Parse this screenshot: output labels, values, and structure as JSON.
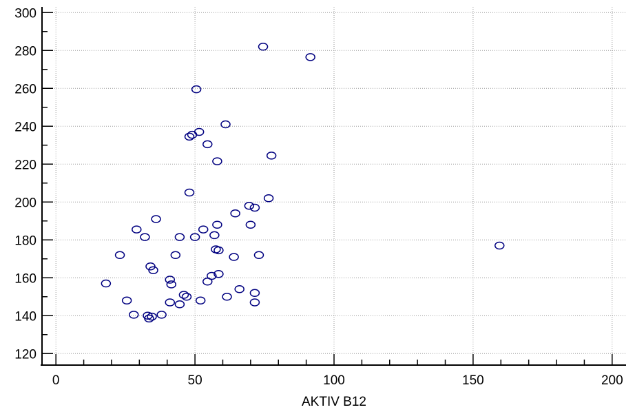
{
  "chart_data": {
    "type": "scatter",
    "title": "",
    "xlabel": "AKTIV B12",
    "ylabel": "",
    "xlim": [
      -5,
      205
    ],
    "ylim": [
      115,
      303
    ],
    "x_ticks": [
      0,
      50,
      100,
      150,
      200
    ],
    "y_ticks": [
      120,
      140,
      160,
      180,
      200,
      220,
      240,
      260,
      280,
      300
    ],
    "x_tick_labels": [
      "0",
      "50",
      "100",
      "150",
      "200"
    ],
    "y_tick_labels": [
      "120",
      "140",
      "160",
      "180",
      "200",
      "220",
      "240",
      "260",
      "280",
      "300"
    ],
    "grid": true,
    "marker_color": "#000080",
    "series": [
      {
        "points": [
          [
            74.5,
            282
          ],
          [
            91.5,
            276.5
          ],
          [
            50.5,
            259.5
          ],
          [
            61,
            241
          ],
          [
            51.5,
            237
          ],
          [
            49,
            235.5
          ],
          [
            48,
            234.5
          ],
          [
            54.5,
            230.5
          ],
          [
            77.5,
            224.5
          ],
          [
            58,
            221.5
          ],
          [
            48,
            205
          ],
          [
            76.5,
            202
          ],
          [
            69.5,
            198
          ],
          [
            71.5,
            197
          ],
          [
            64.5,
            194
          ],
          [
            36,
            191
          ],
          [
            58,
            188
          ],
          [
            70,
            188
          ],
          [
            29,
            185.5
          ],
          [
            53,
            185.5
          ],
          [
            32,
            181.5
          ],
          [
            44.5,
            181.5
          ],
          [
            50,
            181.5
          ],
          [
            57,
            182.5
          ],
          [
            57.5,
            175
          ],
          [
            58.5,
            174.5
          ],
          [
            159.5,
            177
          ],
          [
            23,
            172
          ],
          [
            43,
            172
          ],
          [
            64,
            171
          ],
          [
            73,
            172
          ],
          [
            34,
            166
          ],
          [
            35,
            164
          ],
          [
            56,
            161
          ],
          [
            58.5,
            162
          ],
          [
            41,
            159
          ],
          [
            41.5,
            156.5
          ],
          [
            54.5,
            158
          ],
          [
            18,
            157
          ],
          [
            66,
            154
          ],
          [
            71.5,
            152
          ],
          [
            46,
            151
          ],
          [
            47,
            150
          ],
          [
            61.5,
            150
          ],
          [
            25.5,
            148
          ],
          [
            52,
            148
          ],
          [
            41,
            147
          ],
          [
            71.5,
            147
          ],
          [
            44.5,
            146
          ],
          [
            28,
            140.5
          ],
          [
            33,
            140
          ],
          [
            34.5,
            139.5
          ],
          [
            33.5,
            138.5
          ],
          [
            38,
            140.5
          ]
        ]
      }
    ]
  }
}
